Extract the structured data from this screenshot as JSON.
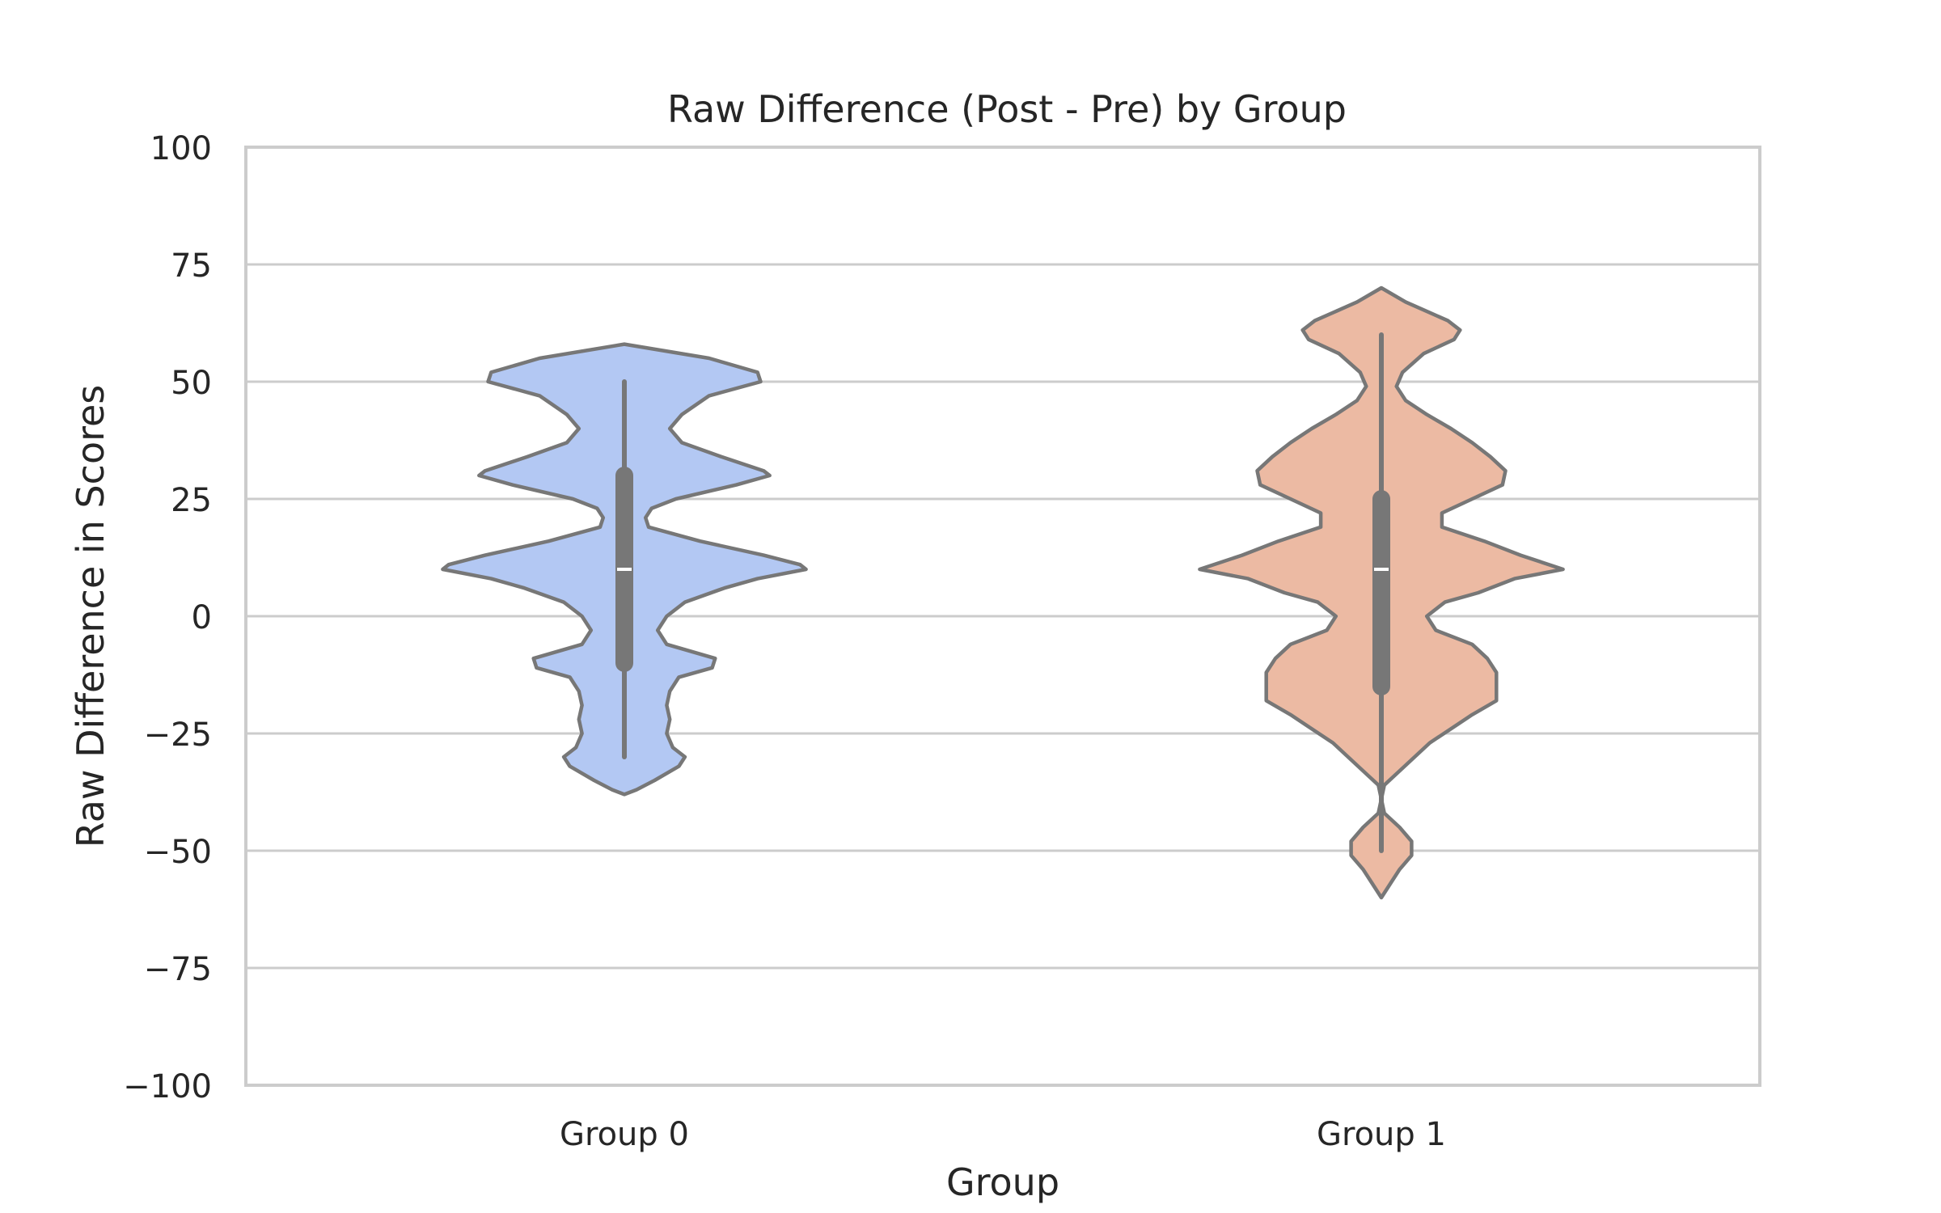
{
  "chart_data": {
    "type": "violin",
    "title": "Raw Difference (Post - Pre) by Group",
    "xlabel": "Group",
    "ylabel": "Raw Difference in Scores",
    "ylim": [
      -100,
      100
    ],
    "yticks": [
      100,
      75,
      50,
      25,
      0,
      -25,
      -50,
      -75,
      -100
    ],
    "ytick_labels": [
      "100",
      "75",
      "50",
      "25",
      "0",
      "−25",
      "−50",
      "−75",
      "−100"
    ],
    "grid": "horizontal",
    "categories": [
      "Group 0",
      "Group 1"
    ],
    "series": [
      {
        "category": "Group 0",
        "color": "#b3c8f3",
        "whisker_low": -30,
        "whisker_high": 50,
        "q1": -10,
        "median": 10,
        "q3": 30,
        "density": [
          [
            58,
            0.0
          ],
          [
            55,
            0.28
          ],
          [
            52,
            0.44
          ],
          [
            50,
            0.45
          ],
          [
            47,
            0.28
          ],
          [
            43,
            0.19
          ],
          [
            40,
            0.15
          ],
          [
            37,
            0.19
          ],
          [
            34,
            0.32
          ],
          [
            31,
            0.46
          ],
          [
            30,
            0.48
          ],
          [
            28,
            0.37
          ],
          [
            25,
            0.17
          ],
          [
            23,
            0.09
          ],
          [
            21,
            0.07
          ],
          [
            19,
            0.08
          ],
          [
            16,
            0.25
          ],
          [
            13,
            0.46
          ],
          [
            11,
            0.58
          ],
          [
            10,
            0.6
          ],
          [
            8,
            0.44
          ],
          [
            6,
            0.33
          ],
          [
            3,
            0.2
          ],
          [
            0,
            0.14
          ],
          [
            -3,
            0.11
          ],
          [
            -6,
            0.14
          ],
          [
            -9,
            0.3
          ],
          [
            -11,
            0.29
          ],
          [
            -13,
            0.18
          ],
          [
            -16,
            0.15
          ],
          [
            -19,
            0.14
          ],
          [
            -22,
            0.15
          ],
          [
            -25,
            0.14
          ],
          [
            -28,
            0.16
          ],
          [
            -30,
            0.2
          ],
          [
            -32,
            0.18
          ],
          [
            -35,
            0.1
          ],
          [
            -37,
            0.04
          ],
          [
            -38,
            0.0
          ]
        ]
      },
      {
        "category": "Group 1",
        "color": "#ecbaa3",
        "whisker_low": -50,
        "whisker_high": 60,
        "q1": -15,
        "median": 10,
        "q3": 25,
        "density": [
          [
            70,
            0.0
          ],
          [
            67,
            0.08
          ],
          [
            63,
            0.22
          ],
          [
            61,
            0.26
          ],
          [
            59,
            0.24
          ],
          [
            56,
            0.14
          ],
          [
            52,
            0.07
          ],
          [
            49,
            0.05
          ],
          [
            46,
            0.08
          ],
          [
            43,
            0.15
          ],
          [
            40,
            0.23
          ],
          [
            37,
            0.3
          ],
          [
            34,
            0.36
          ],
          [
            31,
            0.41
          ],
          [
            28,
            0.4
          ],
          [
            25,
            0.3
          ],
          [
            22,
            0.2
          ],
          [
            19,
            0.2
          ],
          [
            16,
            0.34
          ],
          [
            13,
            0.46
          ],
          [
            10,
            0.6
          ],
          [
            8,
            0.44
          ],
          [
            5,
            0.32
          ],
          [
            3,
            0.21
          ],
          [
            0,
            0.15
          ],
          [
            -3,
            0.18
          ],
          [
            -6,
            0.3
          ],
          [
            -9,
            0.35
          ],
          [
            -12,
            0.38
          ],
          [
            -15,
            0.38
          ],
          [
            -18,
            0.38
          ],
          [
            -21,
            0.3
          ],
          [
            -24,
            0.23
          ],
          [
            -27,
            0.16
          ],
          [
            -30,
            0.11
          ],
          [
            -33,
            0.06
          ],
          [
            -36,
            0.01
          ],
          [
            -39,
            0.0
          ],
          [
            -42,
            0.01
          ],
          [
            -45,
            0.06
          ],
          [
            -48,
            0.1
          ],
          [
            -51,
            0.1
          ],
          [
            -54,
            0.06
          ],
          [
            -57,
            0.03
          ],
          [
            -60,
            0.0
          ]
        ]
      }
    ]
  }
}
